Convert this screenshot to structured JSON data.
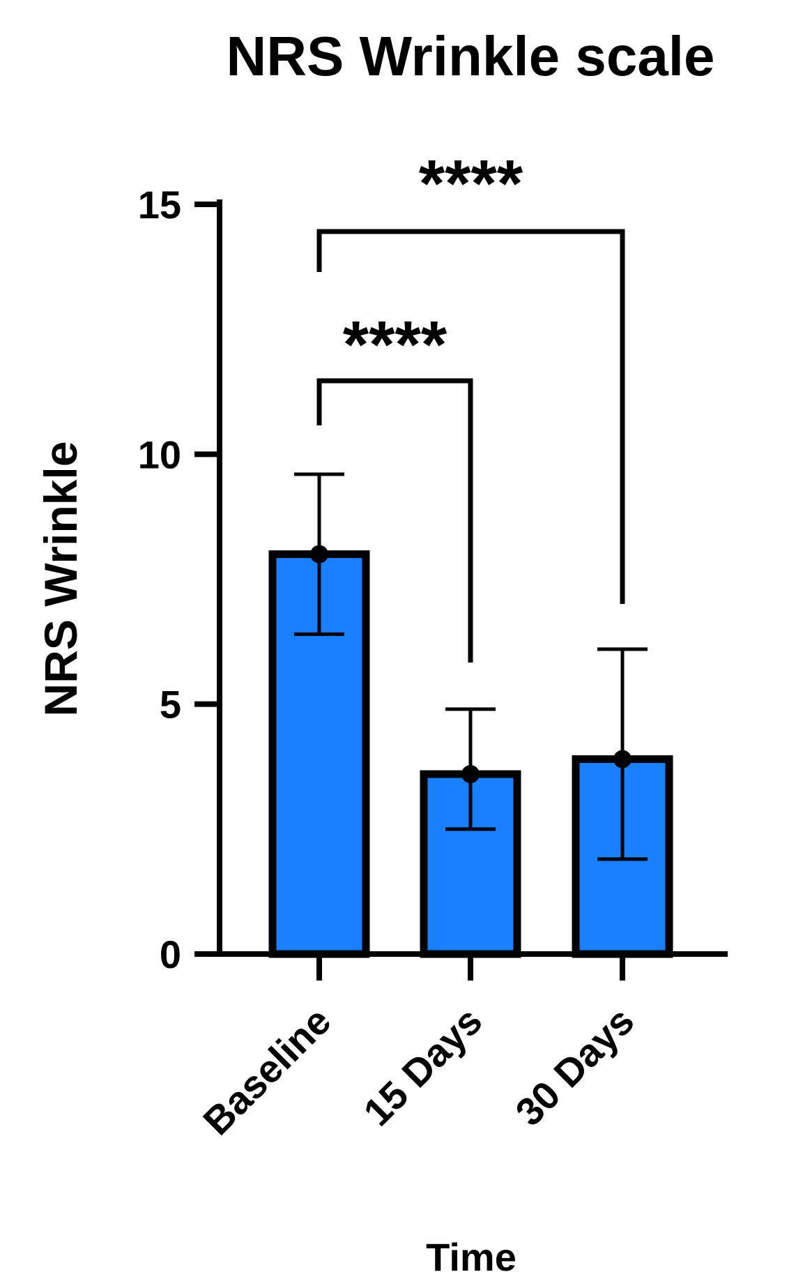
{
  "chart_data": {
    "type": "bar",
    "title": "NRS Wrinkle scale",
    "xlabel": "Time",
    "ylabel": "NRS Wrinkle",
    "categories": [
      "Baseline",
      "15 Days",
      "30 Days"
    ],
    "values": [
      8.0,
      3.6,
      3.9
    ],
    "error_upper": [
      9.6,
      4.9,
      6.1
    ],
    "error_lower": [
      6.4,
      2.5,
      1.9
    ],
    "ylim": [
      0,
      15
    ],
    "yticks": [
      0,
      5,
      10,
      15
    ],
    "grid": false,
    "significance": [
      {
        "from": "Baseline",
        "to": "15 Days",
        "label": "****"
      },
      {
        "from": "Baseline",
        "to": "30 Days",
        "label": "****"
      }
    ]
  },
  "colors": {
    "bar_fill": "#1a80ff",
    "bar_stroke": "#000000",
    "axis": "#000000"
  }
}
